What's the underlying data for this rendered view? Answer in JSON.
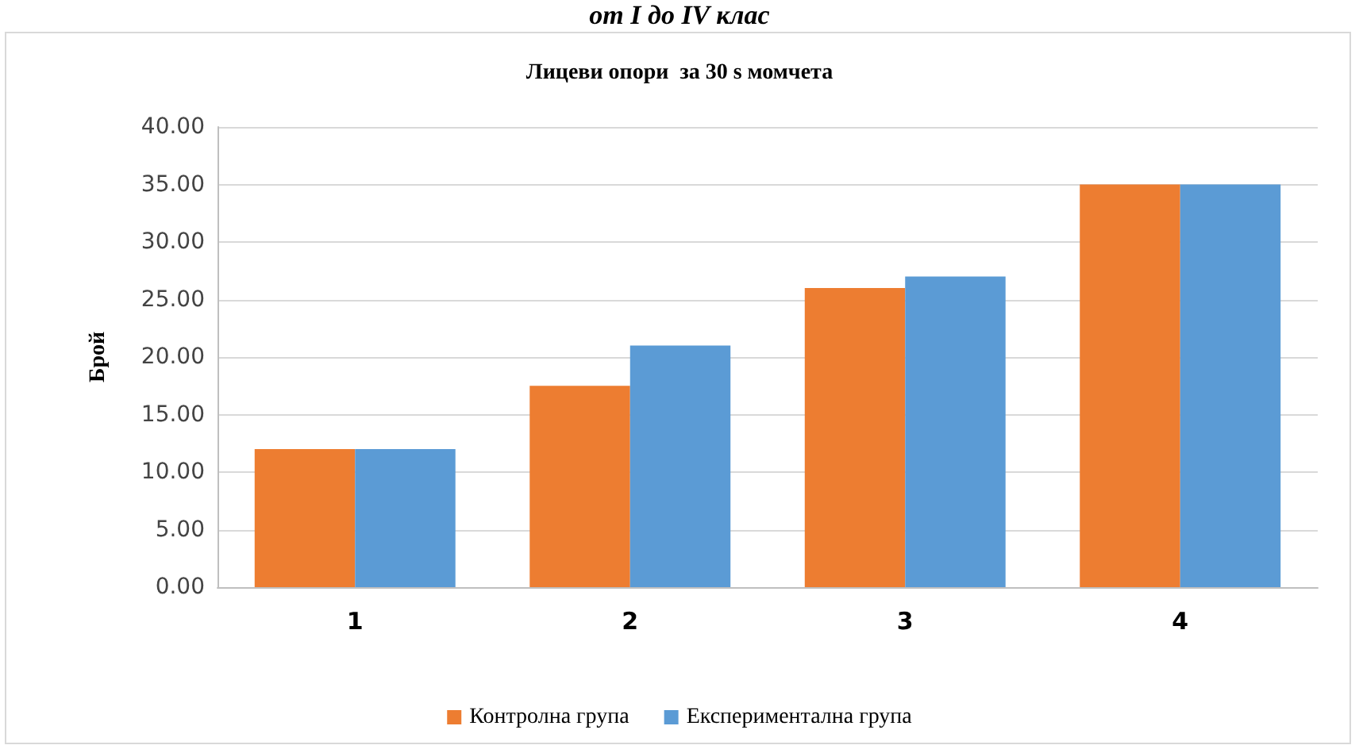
{
  "chart_data": {
    "type": "bar",
    "title": "Лицеви опори  за 30 s момчета",
    "ylabel": "Брой",
    "annotations": [
      "от I до IV клас"
    ],
    "categories": [
      "1",
      "2",
      "3",
      "4"
    ],
    "series": [
      {
        "name": "Контролна група",
        "color": "#ed7d31",
        "values": [
          12,
          17.5,
          26,
          35
        ]
      },
      {
        "name": "Експериментална група",
        "color": "#5b9bd5",
        "values": [
          12,
          21,
          27,
          35
        ]
      }
    ],
    "ylim": [
      0,
      40
    ],
    "yticks": [
      {
        "value": 0,
        "label": "0.00"
      },
      {
        "value": 5,
        "label": "5.00"
      },
      {
        "value": 10,
        "label": "10.00"
      },
      {
        "value": 15,
        "label": "15.00"
      },
      {
        "value": 20,
        "label": "20.00"
      },
      {
        "value": 25,
        "label": "25.00"
      },
      {
        "value": 30,
        "label": "30.00"
      },
      {
        "value": 35,
        "label": "35.00"
      },
      {
        "value": 40,
        "label": "40.00"
      }
    ],
    "grid": "y",
    "legend": "bottom"
  }
}
